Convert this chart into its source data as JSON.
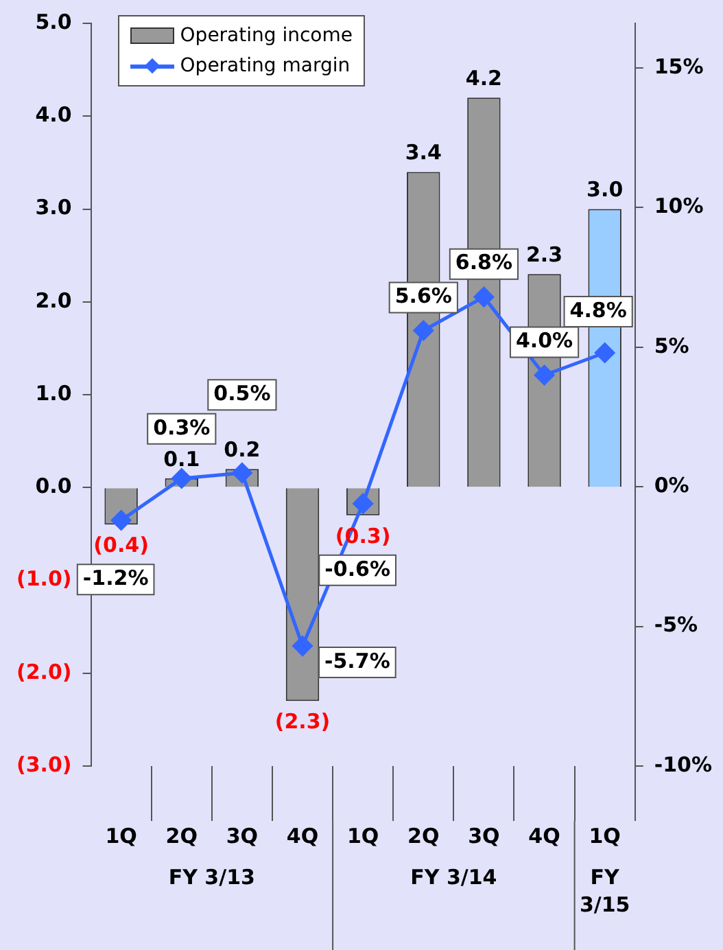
{
  "chart_data": {
    "type": "bar",
    "categories": [
      "1Q",
      "2Q",
      "3Q",
      "4Q",
      "1Q",
      "2Q",
      "3Q",
      "4Q",
      "1Q"
    ],
    "annotations": [
      "FY 3/13",
      "FY 3/14",
      "FY 3/15"
    ],
    "series": [
      {
        "name": "Operating income",
        "type": "bar",
        "color": "#999999",
        "colors": [
          "#999999",
          "#999999",
          "#999999",
          "#999999",
          "#999999",
          "#999999",
          "#999999",
          "#999999",
          "#99ccff"
        ],
        "values": [
          -0.4,
          0.1,
          0.2,
          -2.3,
          -0.3,
          3.4,
          4.2,
          2.3,
          3.0
        ],
        "value_labels": [
          "(0.4)",
          "0.1",
          "0.2",
          "(2.3)",
          "(0.3)",
          "3.4",
          "4.2",
          "2.3",
          "3.0"
        ]
      },
      {
        "name": "Operating margin",
        "type": "line",
        "axis": "y2",
        "color": "#3366ff",
        "marker": "diamond",
        "values": [
          -1.2,
          0.3,
          0.5,
          -5.7,
          -0.6,
          5.6,
          6.8,
          4.0,
          4.8
        ],
        "value_labels": [
          "-1.2%",
          "0.3%",
          "0.5%",
          "-5.7%",
          "-0.6%",
          "5.6%",
          "6.8%",
          "4.0%",
          "4.8%"
        ]
      }
    ],
    "ylim": [
      -3,
      5
    ],
    "yticks": [
      {
        "value": 5,
        "label": "5.0"
      },
      {
        "value": 4,
        "label": "4.0"
      },
      {
        "value": 3,
        "label": "3.0"
      },
      {
        "value": 2,
        "label": "2.0"
      },
      {
        "value": 1,
        "label": "1.0"
      },
      {
        "value": 0,
        "label": "0.0"
      },
      {
        "value": -1,
        "label": "(1.0)"
      },
      {
        "value": -2,
        "label": "(2.0)"
      },
      {
        "value": -3,
        "label": "(3.0)"
      }
    ],
    "y2lim": [
      -10,
      16.6
    ],
    "y2ticks": [
      {
        "value": 15,
        "label": "15%"
      },
      {
        "value": 10,
        "label": "10%"
      },
      {
        "value": 5,
        "label": "5%"
      },
      {
        "value": 0,
        "label": "0%"
      },
      {
        "value": -5,
        "label": "-5%"
      },
      {
        "value": -10,
        "label": "-10%"
      }
    ],
    "grid": false,
    "legend": "top left"
  }
}
